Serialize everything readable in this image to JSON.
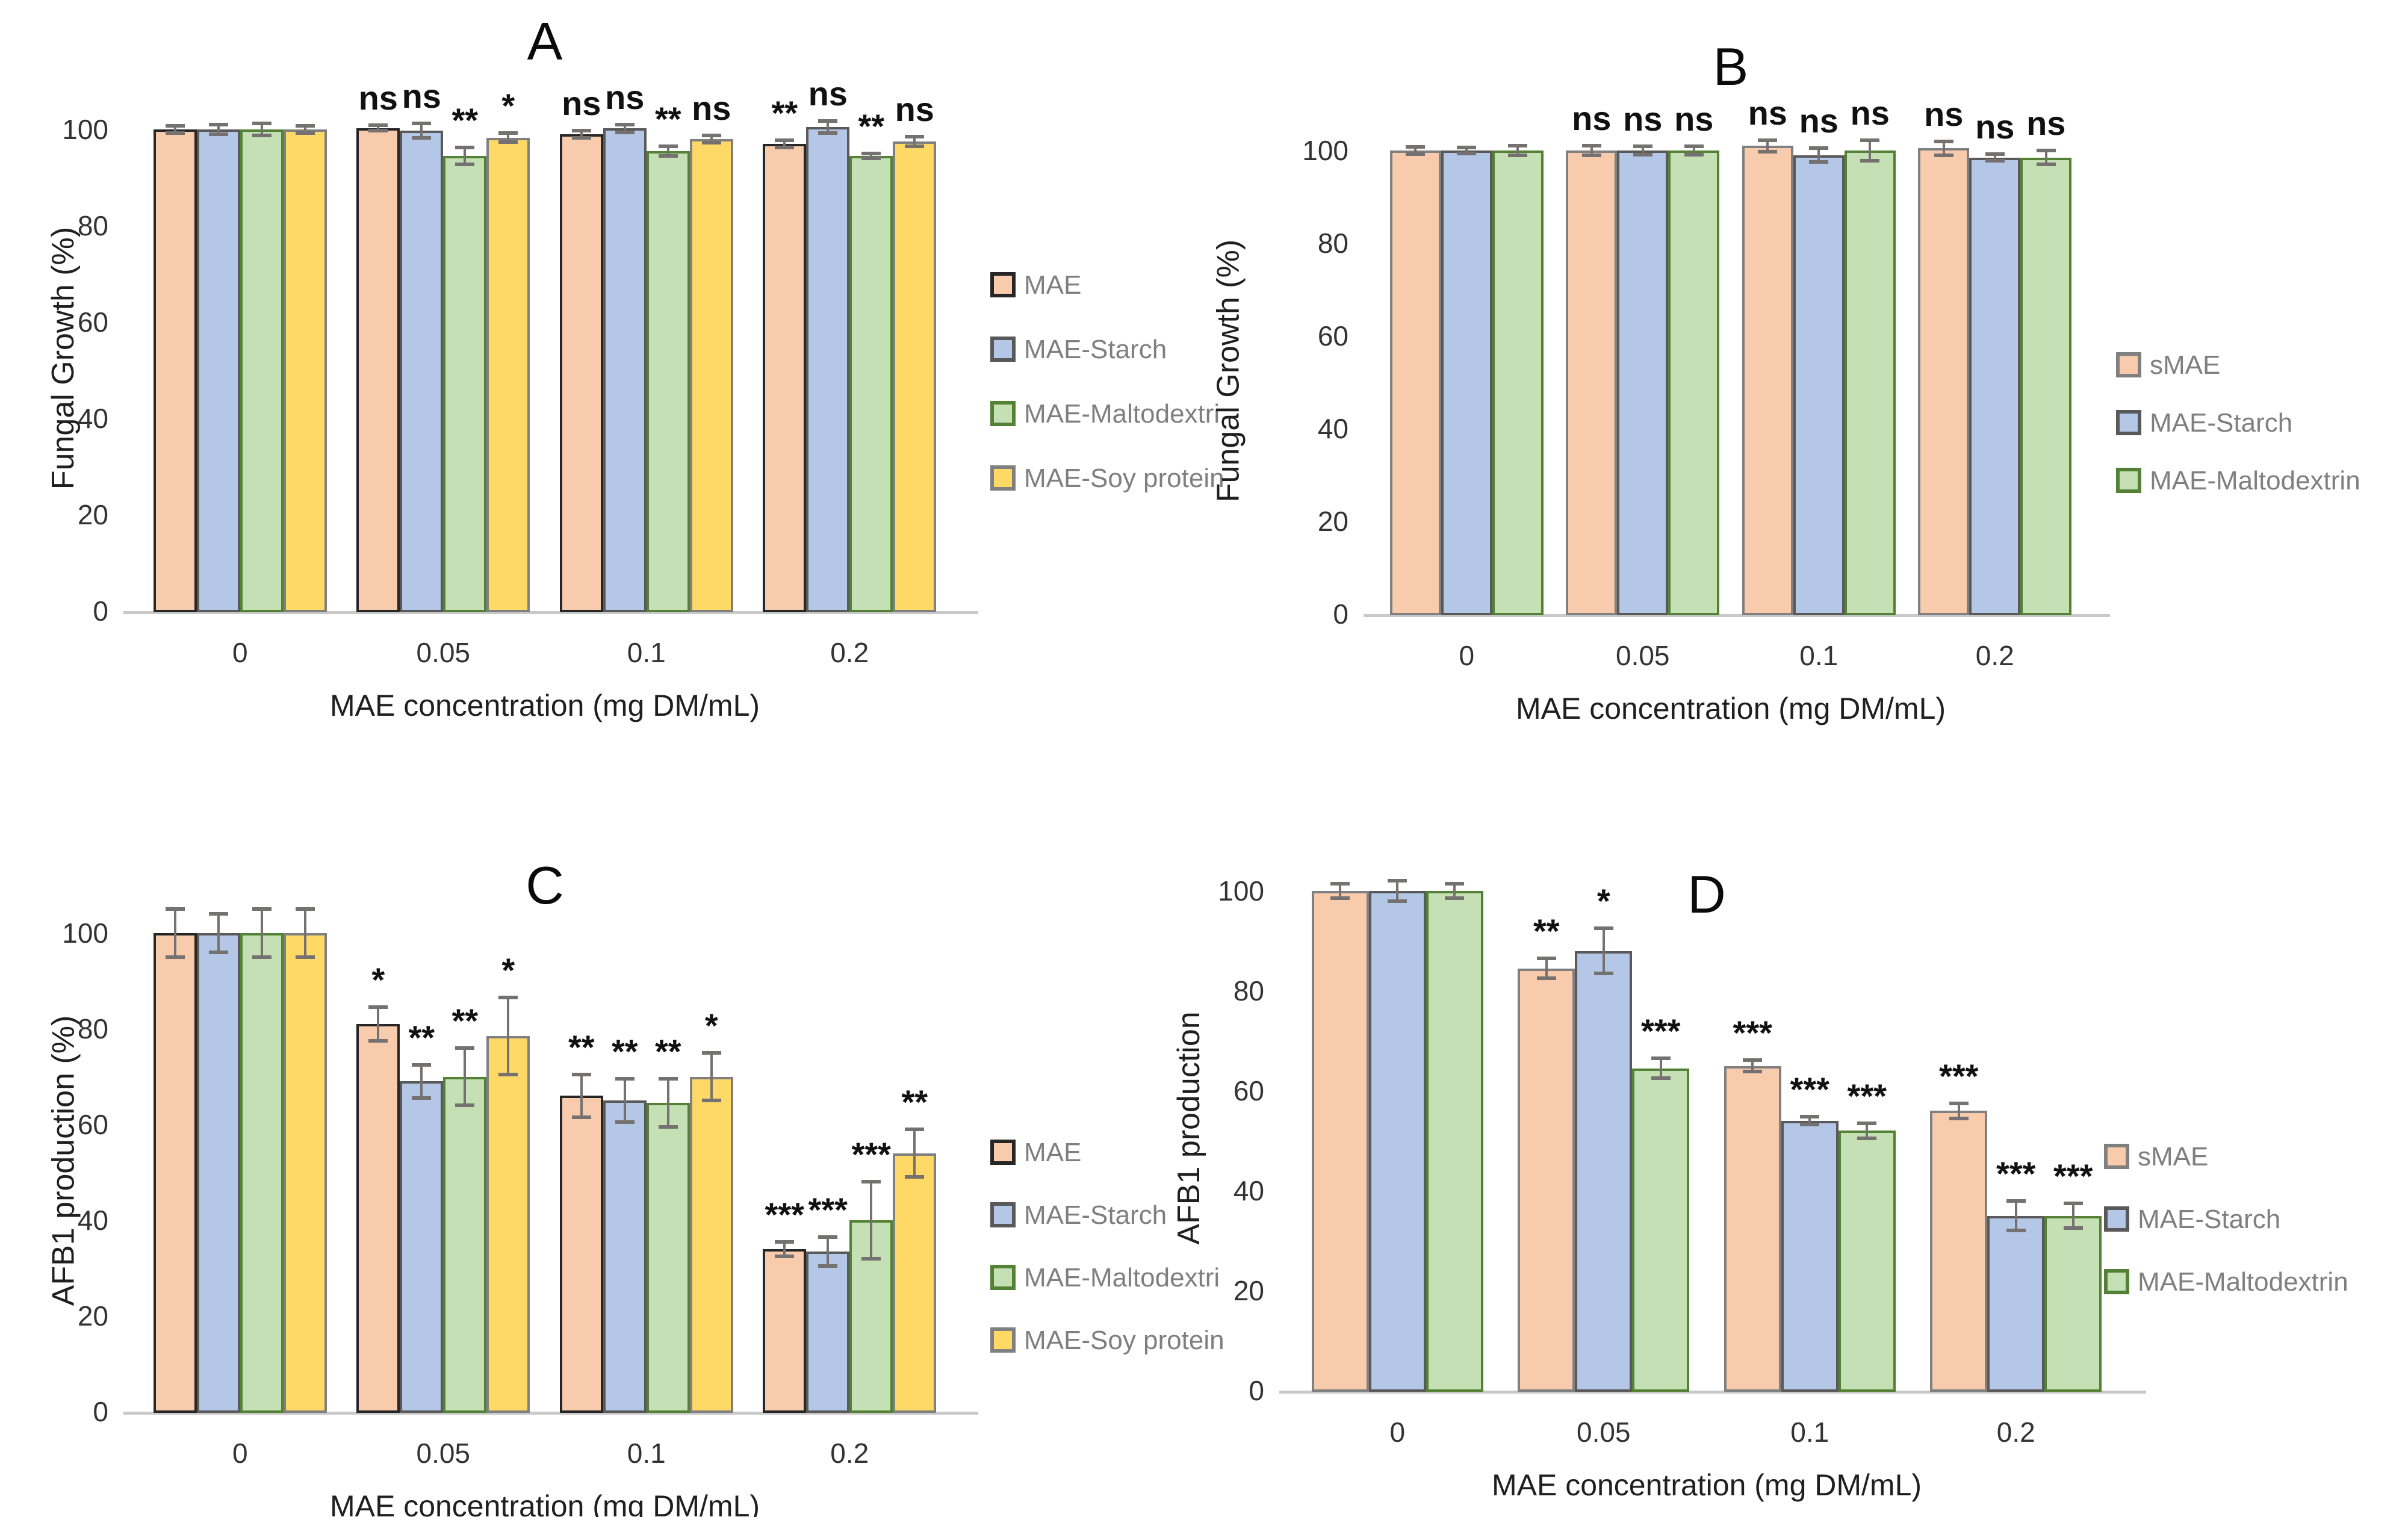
{
  "figure": {
    "background": "#FFFFFF",
    "error_bar_color": "#767171"
  },
  "chart_data": [
    {
      "panel": "A",
      "type": "bar",
      "title": "A",
      "ylabel": "Fungal Growth (%)",
      "xlabel": "MAE concentration (mg DM/mL)",
      "yticks": [
        0,
        20,
        40,
        60,
        80,
        100
      ],
      "ylim": [
        0,
        105
      ],
      "grid": false,
      "legend_position": "right",
      "categories": [
        "0",
        "0.05",
        "0.1",
        "0.2"
      ],
      "series": [
        {
          "name": "MAE",
          "fill": "#F8CBAD",
          "border": "#262626",
          "values": [
            100,
            100.3,
            99,
            97
          ],
          "errors": [
            0.8,
            0.6,
            0.8,
            0.8
          ],
          "annotations": [
            "",
            "ns",
            "ns",
            "**"
          ]
        },
        {
          "name": "MAE-Starch",
          "fill": "#B4C7E7",
          "border": "#595959",
          "values": [
            100,
            99.8,
            100.2,
            100.5
          ],
          "errors": [
            1.0,
            1.5,
            0.8,
            1.2
          ],
          "annotations": [
            "",
            "ns",
            "ns",
            "ns"
          ]
        },
        {
          "name": "MAE-Maltodextri",
          "fill": "#C5E0B4",
          "border": "#538135",
          "values": [
            100,
            94.5,
            95.5,
            94.5
          ],
          "errors": [
            1.3,
            1.8,
            1.0,
            0.5
          ],
          "annotations": [
            "",
            "**",
            "**",
            "**"
          ]
        },
        {
          "name": "MAE-Soy protein",
          "fill": "#FFD966",
          "border": "#808080",
          "values": [
            100,
            98.3,
            98,
            97.5
          ],
          "errors": [
            0.8,
            0.9,
            0.8,
            1.0
          ],
          "annotations": [
            "",
            "*",
            "ns",
            "ns"
          ]
        }
      ]
    },
    {
      "panel": "B",
      "type": "bar",
      "title": "B",
      "ylabel": "Fungal Growth (%)",
      "xlabel": "MAE concentration (mg DM/mL)",
      "yticks": [
        0,
        20,
        40,
        60,
        80,
        100
      ],
      "ylim": [
        0,
        105
      ],
      "grid": false,
      "legend_position": "right",
      "categories": [
        "0",
        "0.05",
        "0.1",
        "0.2"
      ],
      "series": [
        {
          "name": "sMAE",
          "fill": "#F8CBAD",
          "border": "#808080",
          "values": [
            100,
            100,
            101,
            100.5
          ],
          "errors": [
            0.8,
            1.0,
            1.2,
            1.5
          ],
          "annotations": [
            "",
            "ns",
            "ns",
            "ns"
          ]
        },
        {
          "name": "MAE-Starch",
          "fill": "#B4C7E7",
          "border": "#595959",
          "values": [
            100,
            100,
            99,
            98.5
          ],
          "errors": [
            0.7,
            0.9,
            1.5,
            0.7
          ],
          "annotations": [
            "",
            "ns",
            "ns",
            "ns"
          ]
        },
        {
          "name": "MAE-Maltodextrin",
          "fill": "#C5E0B4",
          "border": "#538135",
          "values": [
            100,
            100,
            100,
            98.5
          ],
          "errors": [
            1.0,
            0.9,
            2.2,
            1.5
          ],
          "annotations": [
            "",
            "ns",
            "ns",
            "ns"
          ]
        }
      ]
    },
    {
      "panel": "C",
      "type": "bar",
      "title": "C",
      "ylabel": "AFB1 production (%)",
      "xlabel": "MAE concentration (mg DM/mL)",
      "yticks": [
        0,
        20,
        40,
        60,
        80,
        100
      ],
      "ylim": [
        0,
        105
      ],
      "grid": false,
      "legend_position": "right",
      "categories": [
        "0",
        "0.05",
        "0.1",
        "0.2"
      ],
      "series": [
        {
          "name": "MAE",
          "fill": "#F8CBAD",
          "border": "#262626",
          "values": [
            100,
            81,
            66,
            34
          ],
          "errors": [
            5,
            3.5,
            4.5,
            1.5
          ],
          "annotations": [
            "",
            "*",
            "**",
            "***"
          ]
        },
        {
          "name": "MAE-Starch",
          "fill": "#B4C7E7",
          "border": "#595959",
          "values": [
            100,
            69,
            65,
            33.5
          ],
          "errors": [
            4,
            3.5,
            4.5,
            3
          ],
          "annotations": [
            "",
            "**",
            "**",
            "***"
          ]
        },
        {
          "name": "MAE-Maltodextri",
          "fill": "#C5E0B4",
          "border": "#538135",
          "values": [
            100,
            70,
            64.5,
            40
          ],
          "errors": [
            5,
            6,
            5,
            8
          ],
          "annotations": [
            "",
            "**",
            "**",
            "***"
          ]
        },
        {
          "name": "MAE-Soy protein",
          "fill": "#FFD966",
          "border": "#808080",
          "values": [
            100,
            78.5,
            70,
            54
          ],
          "errors": [
            5,
            8,
            5,
            5
          ],
          "annotations": [
            "",
            "*",
            "*",
            "**"
          ]
        }
      ]
    },
    {
      "panel": "D",
      "type": "bar",
      "title": "D",
      "ylabel": "AFB1 production",
      "xlabel": "MAE concentration (mg DM/mL)",
      "yticks": [
        0,
        20,
        40,
        60,
        80,
        100
      ],
      "ylim": [
        0,
        105
      ],
      "grid": false,
      "legend_position": "right",
      "categories": [
        "0",
        "0.05",
        "0.1",
        "0.2"
      ],
      "series": [
        {
          "name": "sMAE",
          "fill": "#F8CBAD",
          "border": "#808080",
          "values": [
            100,
            84.5,
            65,
            56
          ],
          "errors": [
            1.5,
            2,
            1.2,
            1.5
          ],
          "annotations": [
            "",
            "**",
            "***",
            "***"
          ]
        },
        {
          "name": "MAE-Starch",
          "fill": "#B4C7E7",
          "border": "#595959",
          "values": [
            100,
            88,
            54,
            35
          ],
          "errors": [
            2,
            4.5,
            0.8,
            3
          ],
          "annotations": [
            "",
            "*",
            "***",
            "***"
          ]
        },
        {
          "name": "MAE-Maltodextrin",
          "fill": "#C5E0B4",
          "border": "#538135",
          "values": [
            100,
            64.5,
            52,
            35
          ],
          "errors": [
            1.5,
            2,
            1.5,
            2.5
          ],
          "annotations": [
            "",
            "***",
            "***",
            "***"
          ]
        }
      ]
    }
  ]
}
